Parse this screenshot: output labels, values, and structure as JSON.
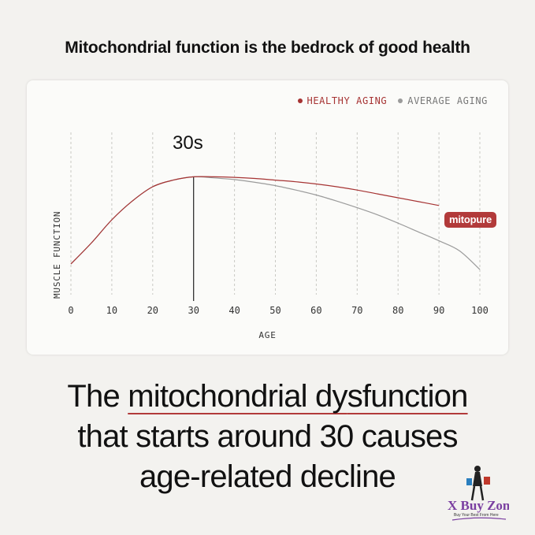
{
  "headline": "Mitochondrial function is the bedrock of good health",
  "chart_data": {
    "type": "line",
    "title": "",
    "xlabel": "AGE",
    "ylabel": "MUSCLE FUNCTION",
    "xlim": [
      0,
      100
    ],
    "ylim": [
      0,
      100
    ],
    "grid": "vertical dashed",
    "legend_position": "top-right",
    "x_ticks": [
      "0",
      "10",
      "20",
      "30",
      "40",
      "50",
      "60",
      "70",
      "80",
      "90",
      "100"
    ],
    "x": [
      0,
      5,
      10,
      15,
      20,
      25,
      30,
      35,
      40,
      45,
      50,
      55,
      60,
      65,
      70,
      75,
      80,
      85,
      90,
      95,
      100
    ],
    "series": [
      {
        "name": "HEALTHY AGING",
        "color": "#a63333",
        "values": [
          5,
          24,
          45,
          62,
          75,
          81,
          84,
          84,
          83.5,
          82.5,
          81,
          79.5,
          77.5,
          75,
          72,
          68.5,
          65,
          61.5,
          58,
          55,
          52
        ]
      },
      {
        "name": "AVERAGE AGING",
        "color": "#9b9b9b",
        "values": [
          5,
          24,
          45,
          62,
          75,
          81,
          84,
          83,
          81.5,
          79,
          76,
          72,
          67.5,
          62,
          56,
          49.5,
          42,
          34,
          26,
          17,
          0
        ]
      }
    ],
    "annotation": {
      "x": 30,
      "label": "30s"
    },
    "brand_label": "mitopure"
  },
  "tagline": {
    "line1_pre": "The ",
    "line1_u1": "mitochondrial dy",
    "line1_u2": "sfunction",
    "line2": "that starts around 30 causes",
    "line3": "age-related decline"
  },
  "watermark": {
    "brand": "X Buy Zone",
    "slogan": "Buy Your Best From Here"
  }
}
